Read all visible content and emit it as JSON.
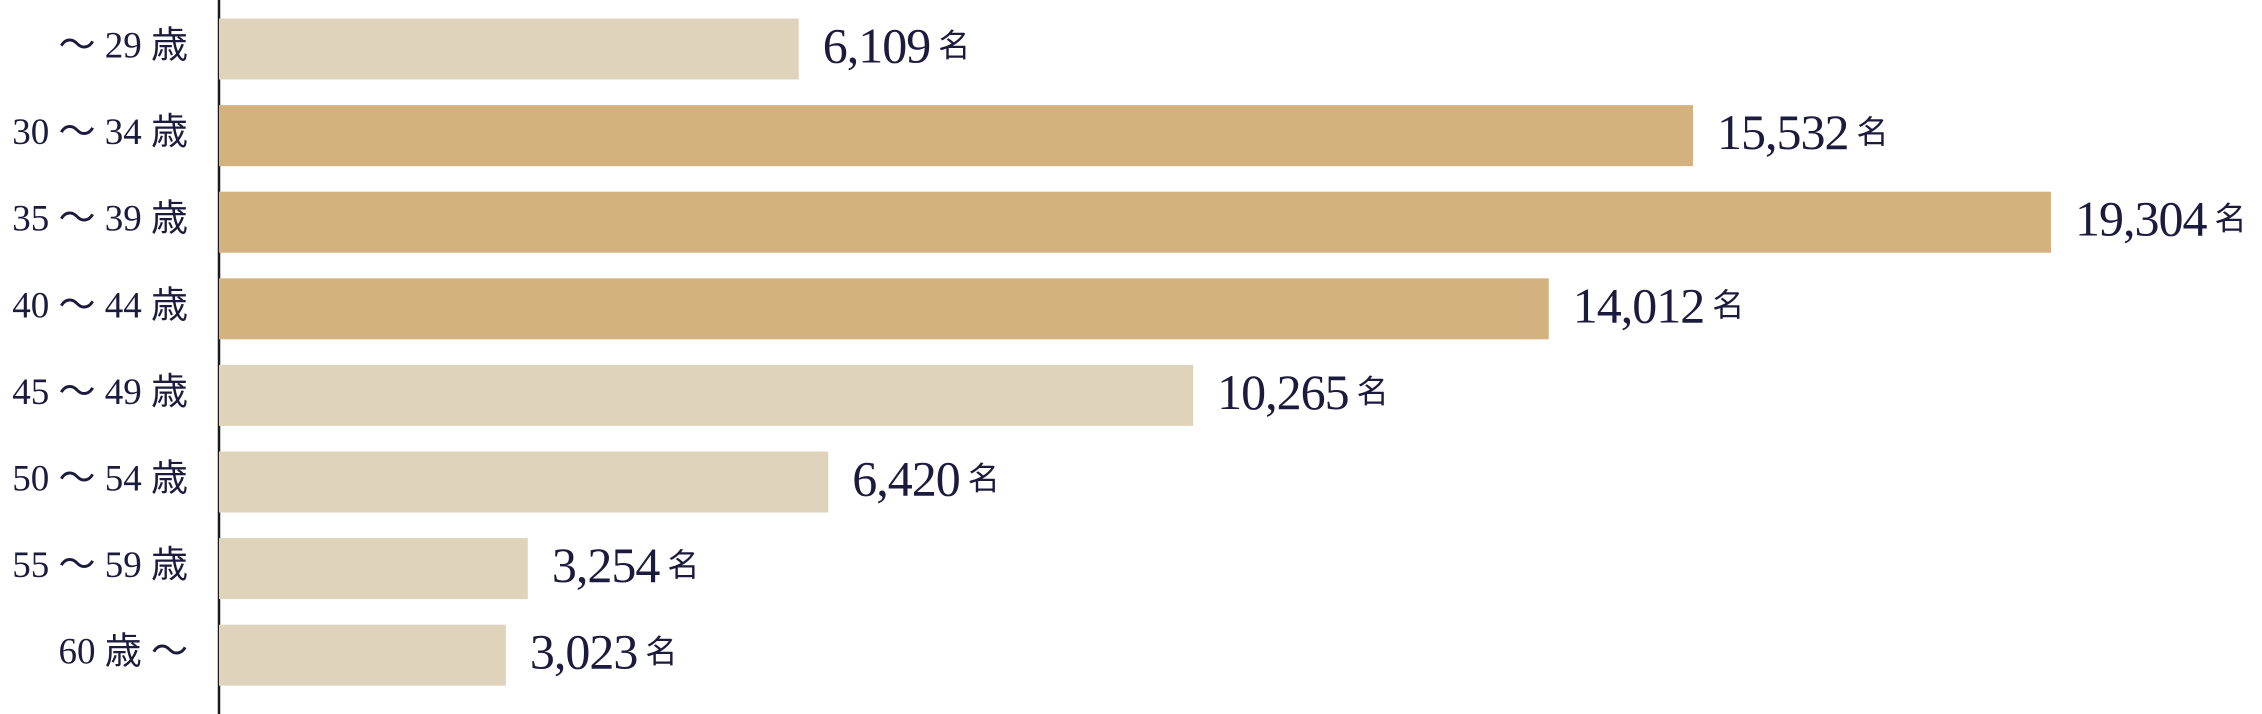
{
  "chart_data": {
    "type": "bar",
    "orientation": "horizontal",
    "categories": [
      "〜 29 歳",
      "30 〜 34 歳",
      "35 〜 39 歳",
      "40 〜 44 歳",
      "45 〜 49 歳",
      "50 〜 54 歳",
      "55 〜 59 歳",
      "60 歳 〜"
    ],
    "values": [
      6109,
      15532,
      19304,
      14012,
      10265,
      6420,
      3254,
      3023
    ],
    "value_labels": [
      "6,109",
      "15,532",
      "19,304",
      "14,012",
      "10,265",
      "6,420",
      "3,254",
      "3,023"
    ],
    "unit": "名",
    "colors": [
      "#e0d3bc",
      "#d4b27f",
      "#d4b27f",
      "#d4b27f",
      "#e0d3bc",
      "#e0d3bc",
      "#e0d3bc",
      "#e0d3bc"
    ]
  }
}
